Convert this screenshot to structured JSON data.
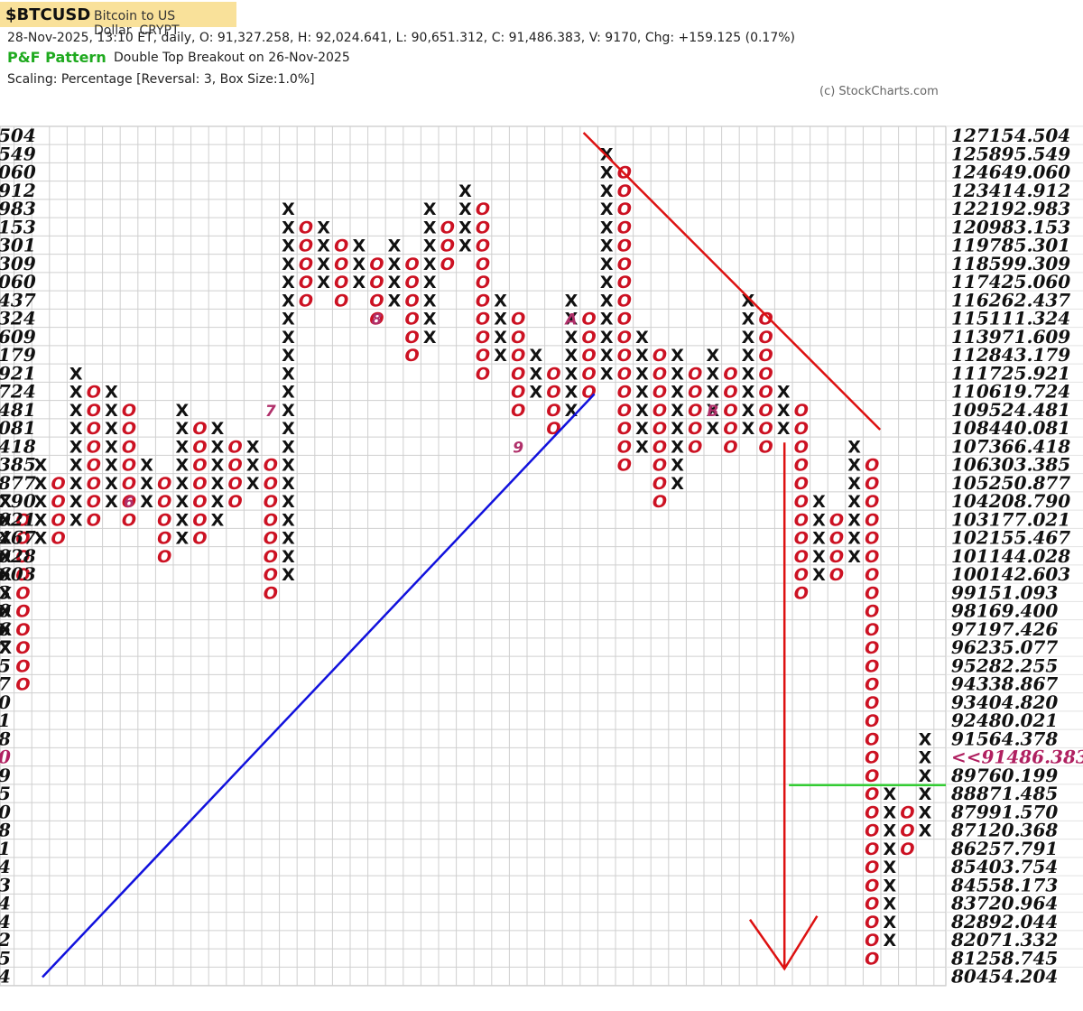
{
  "header": {
    "symbol": "$BTCUSD",
    "name": "Bitcoin to US Dollar",
    "exchange": "CRYPT",
    "quote": "28-Nov-2025, 13:10 ET, daily, O: 91,327.258, H: 92,024.641, L: 90,651.312, C: 91,486.383, V: 9170, Chg: +159.125 (0.17%)",
    "pattern_title": "P&F Pattern",
    "pattern_desc": "Double Top Breakout on 26-Nov-2025",
    "scaling": "Scaling: Percentage [Reversal: 3, Box Size:1.0%]",
    "credit": "(c) StockCharts.com"
  },
  "chart_data": {
    "type": "point-and-figure",
    "title": "$BTCUSD",
    "box_size_percent": 1.0,
    "reversal": 3,
    "price_levels": [
      "127154.504",
      "125895.549",
      "124649.060",
      "123414.912",
      "122192.983",
      "120983.153",
      "119785.301",
      "118599.309",
      "117425.060",
      "116262.437",
      "115111.324",
      "113971.609",
      "112843.179",
      "111725.921",
      "110619.724",
      "109524.481",
      "108440.081",
      "107366.418",
      "106303.385",
      "105250.877",
      "104208.790",
      "103177.021",
      "102155.467",
      "101144.028",
      "100142.603",
      "99151.093",
      "98169.400",
      "97197.426",
      "96235.077",
      "95282.255",
      "94338.867",
      "93404.820",
      "92480.021",
      "91564.378",
      "90658.790",
      "89760.199",
      "88871.485",
      "87991.570",
      "87120.368",
      "86257.791",
      "85403.754",
      "84558.173",
      "83720.964",
      "82892.044",
      "82071.332",
      "81258.745",
      "80454.204"
    ],
    "left_labels": [
      "504",
      "549",
      "060",
      "912",
      "983",
      "153",
      "301",
      "309",
      "060",
      "437",
      "324",
      "609",
      "179",
      "921",
      "724",
      "481",
      "081",
      "418",
      "385",
      "877",
      "790",
      "021",
      "467",
      "028",
      "603",
      "3",
      "0",
      "6",
      "7",
      "5",
      "7",
      "0",
      "1",
      "8",
      "0",
      "9",
      "5",
      "0",
      "8",
      "1",
      "4",
      "3",
      "4",
      "4",
      "2",
      "5",
      "4"
    ],
    "current_price_label": "<<91486.383",
    "columns": [
      {
        "type": "X",
        "from": 28,
        "to": 20
      },
      {
        "type": "O",
        "from": 21,
        "to": 30
      },
      {
        "type": "X",
        "from": 22,
        "to": 18
      },
      {
        "type": "O",
        "from": 19,
        "to": 22
      },
      {
        "type": "X",
        "from": 21,
        "to": 13
      },
      {
        "type": "O",
        "from": 14,
        "to": 21
      },
      {
        "type": "X",
        "from": 20,
        "to": 14
      },
      {
        "type": "O",
        "from": 15,
        "to": 21
      },
      {
        "type": "X",
        "from": 20,
        "to": 18
      },
      {
        "type": "O",
        "from": 19,
        "to": 23
      },
      {
        "type": "X",
        "from": 22,
        "to": 15
      },
      {
        "type": "O",
        "from": 16,
        "to": 22
      },
      {
        "type": "X",
        "from": 21,
        "to": 16
      },
      {
        "type": "O",
        "from": 17,
        "to": 20
      },
      {
        "type": "X",
        "from": 19,
        "to": 17
      },
      {
        "type": "O",
        "from": 18,
        "to": 25
      },
      {
        "type": "X",
        "from": 24,
        "to": 4
      },
      {
        "type": "O",
        "from": 5,
        "to": 9
      },
      {
        "type": "X",
        "from": 8,
        "to": 5
      },
      {
        "type": "O",
        "from": 6,
        "to": 9
      },
      {
        "type": "X",
        "from": 8,
        "to": 6
      },
      {
        "type": "O",
        "from": 7,
        "to": 10
      },
      {
        "type": "X",
        "from": 9,
        "to": 6
      },
      {
        "type": "O",
        "from": 7,
        "to": 12
      },
      {
        "type": "X",
        "from": 11,
        "to": 4
      },
      {
        "type": "O",
        "from": 5,
        "to": 7
      },
      {
        "type": "X",
        "from": 6,
        "to": 3
      },
      {
        "type": "O",
        "from": 4,
        "to": 13
      },
      {
        "type": "X",
        "from": 12,
        "to": 9
      },
      {
        "type": "O",
        "from": 10,
        "to": 15
      },
      {
        "type": "X",
        "from": 14,
        "to": 12
      },
      {
        "type": "O",
        "from": 13,
        "to": 16
      },
      {
        "type": "X",
        "from": 15,
        "to": 9
      },
      {
        "type": "O",
        "from": 10,
        "to": 14
      },
      {
        "type": "X",
        "from": 13,
        "to": 1
      },
      {
        "type": "O",
        "from": 2,
        "to": 18
      },
      {
        "type": "X",
        "from": 17,
        "to": 11
      },
      {
        "type": "O",
        "from": 12,
        "to": 20
      },
      {
        "type": "X",
        "from": 19,
        "to": 12
      },
      {
        "type": "O",
        "from": 13,
        "to": 17
      },
      {
        "type": "X",
        "from": 16,
        "to": 12
      },
      {
        "type": "O",
        "from": 13,
        "to": 17
      },
      {
        "type": "X",
        "from": 16,
        "to": 9
      },
      {
        "type": "O",
        "from": 10,
        "to": 17
      },
      {
        "type": "X",
        "from": 16,
        "to": 14
      },
      {
        "type": "O",
        "from": 15,
        "to": 25
      },
      {
        "type": "X",
        "from": 24,
        "to": 20
      },
      {
        "type": "O",
        "from": 21,
        "to": 24
      },
      {
        "type": "X",
        "from": 23,
        "to": 17
      },
      {
        "type": "O",
        "from": 18,
        "to": 45
      },
      {
        "type": "X",
        "from": 44,
        "to": 36
      },
      {
        "type": "O",
        "from": 37,
        "to": 39
      },
      {
        "type": "X",
        "from": 38,
        "to": 33
      }
    ],
    "month_markers": [
      {
        "label": "6",
        "col": 7,
        "row": 20
      },
      {
        "label": "7",
        "col": 15,
        "row": 15
      },
      {
        "label": "8",
        "col": 21,
        "row": 10
      },
      {
        "label": "9",
        "col": 29,
        "row": 17
      },
      {
        "label": "A",
        "col": 32,
        "row": 10
      },
      {
        "label": "B",
        "col": 40,
        "row": 15
      }
    ]
  }
}
